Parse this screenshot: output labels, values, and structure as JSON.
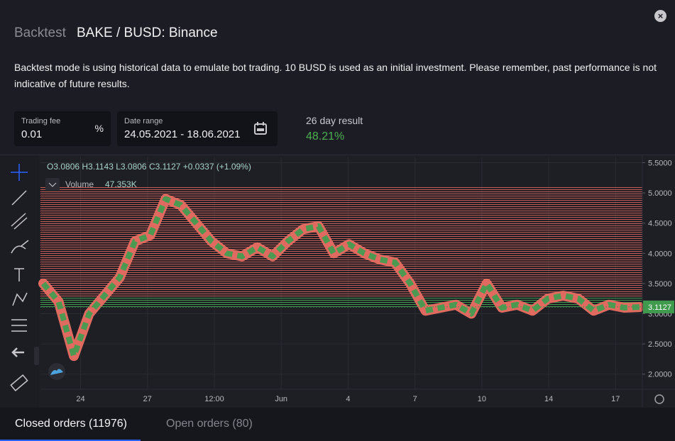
{
  "header": {
    "label": "Backtest",
    "title": "BAKE / BUSD: Binance"
  },
  "description": "Backtest mode is using historical data to emulate bot trading. 10 BUSD is used as an initial investment. Please remember, past performance is not indicative of future results.",
  "fields": {
    "trading_fee": {
      "label": "Trading fee",
      "value": "0.01",
      "unit": "%"
    },
    "date_range": {
      "label": "Date range",
      "value": "24.05.2021 - 18.06.2021"
    }
  },
  "result": {
    "label": "26 day result",
    "value": "48.21%"
  },
  "chart": {
    "legend": {
      "open": "O3.0806",
      "high": "H3.1143",
      "low": "L3.0806",
      "close": "C3.1127",
      "change": "+0.0337 (+1.09%)"
    },
    "volume": {
      "label": "Volume",
      "value": "47.353K"
    },
    "ylim": [
      1.75,
      5.6
    ],
    "yticks": [
      {
        "value": 5.5,
        "label": "5.5000"
      },
      {
        "value": 5.0,
        "label": "5.0000"
      },
      {
        "value": 4.5,
        "label": "4.5000"
      },
      {
        "value": 4.0,
        "label": "4.0000"
      },
      {
        "value": 3.5,
        "label": "3.5000"
      },
      {
        "value": 3.0,
        "label": "3.0000"
      },
      {
        "value": 2.5,
        "label": "2.5000"
      },
      {
        "value": 2.0,
        "label": "2.0000"
      }
    ],
    "last_price": {
      "value": 3.1127,
      "label": "3.1127"
    },
    "xlabels": [
      "24",
      "27",
      "12:00",
      "Jun",
      "4",
      "7",
      "10",
      "14",
      "17"
    ],
    "values": [
      3.5,
      3.2,
      2.3,
      3.0,
      3.3,
      3.6,
      4.2,
      4.3,
      4.9,
      4.8,
      4.5,
      4.2,
      4.0,
      3.95,
      4.1,
      3.95,
      4.2,
      4.4,
      4.45,
      4.0,
      4.15,
      4.0,
      3.9,
      3.85,
      3.5,
      3.05,
      3.1,
      3.15,
      3.0,
      3.5,
      3.1,
      3.15,
      3.05,
      3.25,
      3.3,
      3.25,
      3.05,
      3.15,
      3.1,
      3.11
    ]
  },
  "tabs": {
    "closed": "Closed orders (11976)",
    "open": "Open orders (80)"
  }
}
